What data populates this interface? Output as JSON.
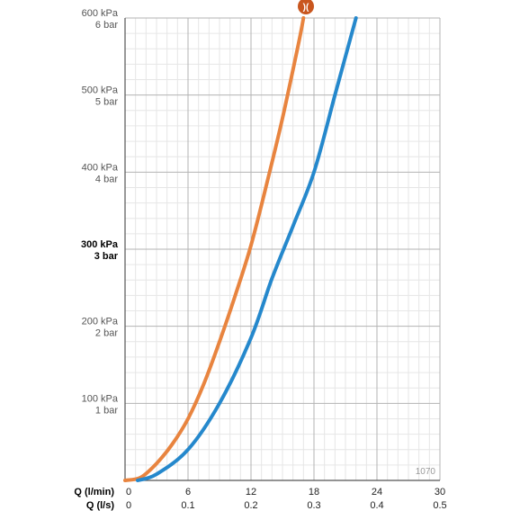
{
  "chart_data": {
    "type": "line",
    "xlabel": "Q (l/min)",
    "x2label": "Q (l/s)",
    "x_ticks": [
      "0",
      "6",
      "12",
      "18",
      "24",
      "30"
    ],
    "x2_ticks": [
      "0",
      "0.1",
      "0.2",
      "0.3",
      "0.4",
      "0.5"
    ],
    "xlim": [
      0,
      30
    ],
    "ylim": [
      0,
      600
    ],
    "y_ticks": [
      {
        "value": 100,
        "kpa": "100 kPa",
        "bar": "1 bar",
        "bold": false
      },
      {
        "value": 200,
        "kpa": "200 kPa",
        "bar": "2 bar",
        "bold": false
      },
      {
        "value": 300,
        "kpa": "300 kPa",
        "bar": "3 bar",
        "bold": true
      },
      {
        "value": 400,
        "kpa": "400 kPa",
        "bar": "4 bar",
        "bold": false
      },
      {
        "value": 500,
        "kpa": "500 kPa",
        "bar": "5 bar",
        "bold": false
      },
      {
        "value": 600,
        "kpa": "600 kPa",
        "bar": "6 bar",
        "bold": false
      }
    ],
    "grid": true,
    "code_label": "1070",
    "badge_icon": "flow-restrictor-icon",
    "badge_symbol": ")(",
    "series": [
      {
        "color": "#E8843F",
        "x": [
          0,
          1.5,
          3,
          4.5,
          6,
          7.5,
          9,
          10.5,
          12,
          13.5,
          15,
          16.5,
          17
        ],
        "y": [
          0,
          4,
          22,
          47,
          80,
          125,
          180,
          240,
          305,
          385,
          470,
          565,
          600
        ]
      },
      {
        "color": "#2588CC",
        "x": [
          1.2,
          3,
          6,
          9,
          12,
          14,
          16,
          18,
          20,
          22
        ],
        "y": [
          0,
          8,
          40,
          100,
          185,
          262,
          330,
          400,
          500,
          600
        ]
      }
    ]
  }
}
